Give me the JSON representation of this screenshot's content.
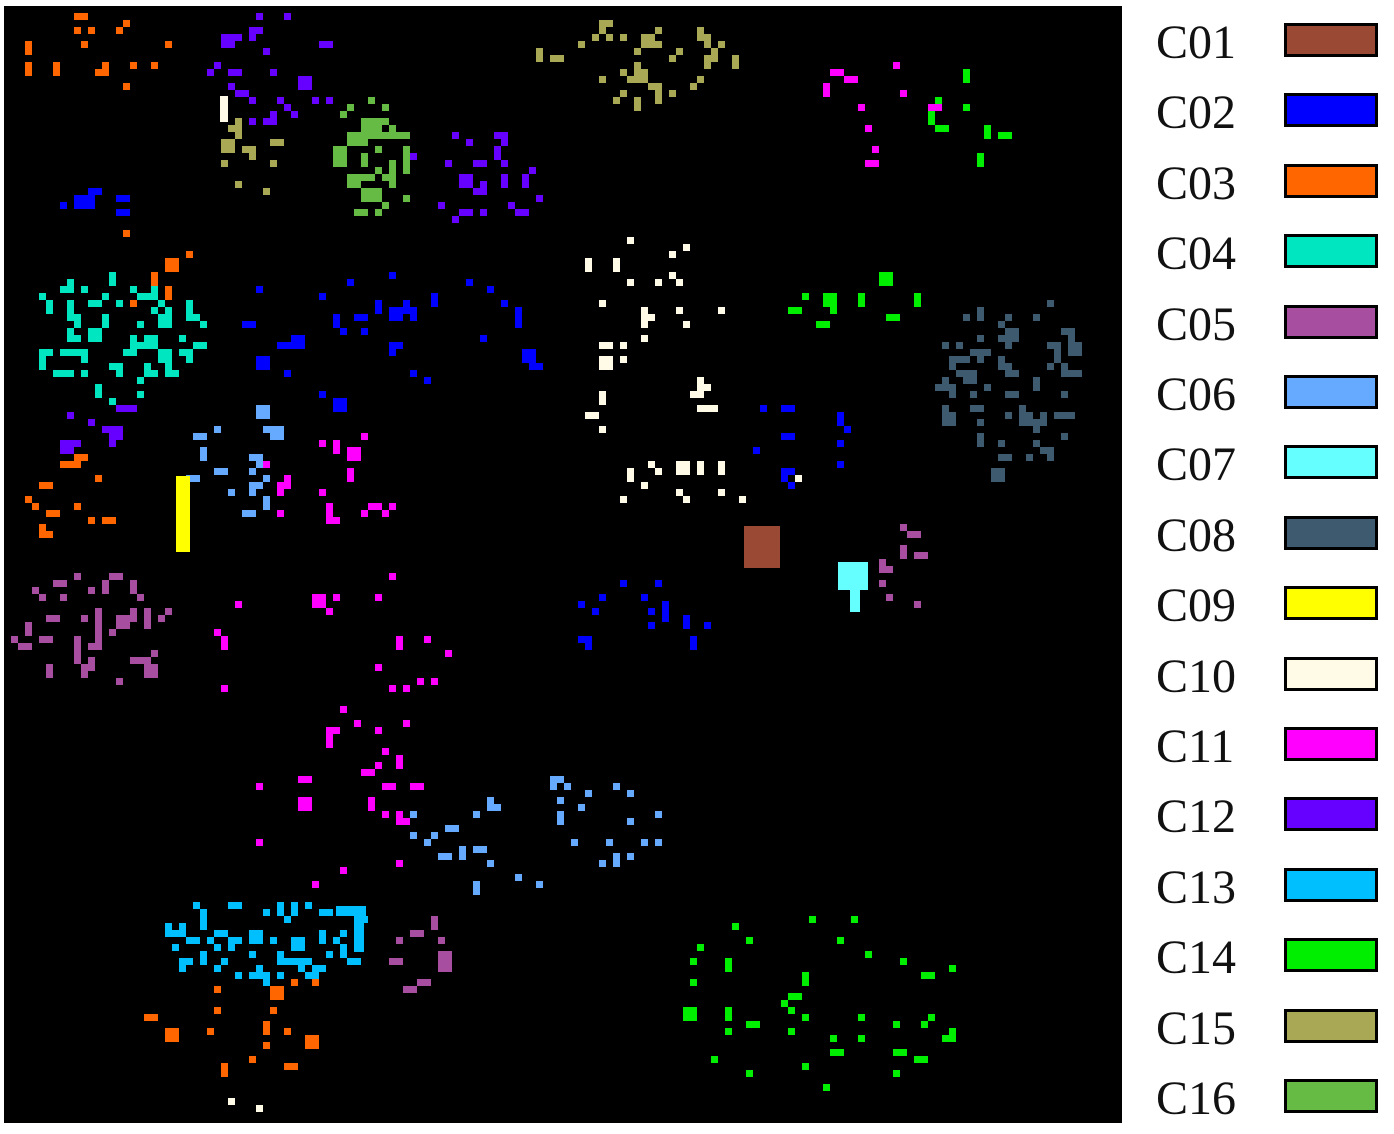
{
  "classes": [
    {
      "label": "C01",
      "color": "#9a4a34"
    },
    {
      "label": "C02",
      "color": "#0000ff"
    },
    {
      "label": "C03",
      "color": "#ff6600"
    },
    {
      "label": "C04",
      "color": "#00e6c0"
    },
    {
      "label": "C05",
      "color": "#a84ea0"
    },
    {
      "label": "C06",
      "color": "#66aaff"
    },
    {
      "label": "C07",
      "color": "#66ffff"
    },
    {
      "label": "C08",
      "color": "#3e5a6e"
    },
    {
      "label": "C09",
      "color": "#ffff00"
    },
    {
      "label": "C10",
      "color": "#fffbe6"
    },
    {
      "label": "C11",
      "color": "#ff00ff"
    },
    {
      "label": "C12",
      "color": "#6600ff"
    },
    {
      "label": "C13",
      "color": "#00bfff"
    },
    {
      "label": "C14",
      "color": "#00ee00"
    },
    {
      "label": "C15",
      "color": "#a8a855"
    },
    {
      "label": "C16",
      "color": "#66bb44"
    }
  ],
  "background_color": "#000000"
}
